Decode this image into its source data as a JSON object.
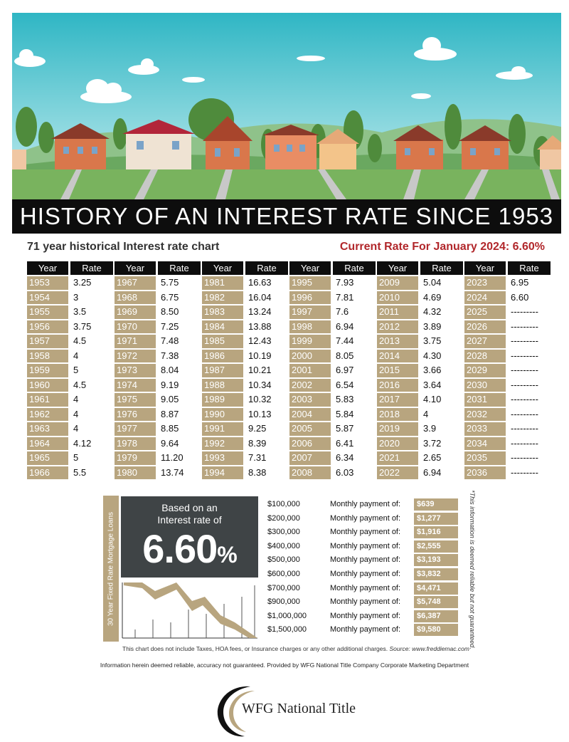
{
  "title": "HISTORY OF AN INTEREST RATE SINCE 1953",
  "subtitle_left": "71 year historical Interest rate chart",
  "subtitle_right": "Current Rate For January 2024: 6.60%",
  "headers": {
    "year": "Year",
    "rate": "Rate"
  },
  "tables": [
    {
      "rows": [
        {
          "year": "1953",
          "rate": "3.25"
        },
        {
          "year": "1954",
          "rate": "3"
        },
        {
          "year": "1955",
          "rate": "3.5"
        },
        {
          "year": "1956",
          "rate": "3.75"
        },
        {
          "year": "1957",
          "rate": "4.5"
        },
        {
          "year": "1958",
          "rate": "4"
        },
        {
          "year": "1959",
          "rate": "5"
        },
        {
          "year": "1960",
          "rate": "4.5"
        },
        {
          "year": "1961",
          "rate": "4"
        },
        {
          "year": "1962",
          "rate": "4"
        },
        {
          "year": "1963",
          "rate": "4"
        },
        {
          "year": "1964",
          "rate": "4.12"
        },
        {
          "year": "1965",
          "rate": "5"
        },
        {
          "year": "1966",
          "rate": "5.5"
        }
      ]
    },
    {
      "rows": [
        {
          "year": "1967",
          "rate": "5.75"
        },
        {
          "year": "1968",
          "rate": "6.75"
        },
        {
          "year": "1969",
          "rate": "8.50"
        },
        {
          "year": "1970",
          "rate": "7.25"
        },
        {
          "year": "1971",
          "rate": "7.48"
        },
        {
          "year": "1972",
          "rate": "7.38"
        },
        {
          "year": "1973",
          "rate": "8.04"
        },
        {
          "year": "1974",
          "rate": "9.19"
        },
        {
          "year": "1975",
          "rate": "9.05"
        },
        {
          "year": "1976",
          "rate": "8.87"
        },
        {
          "year": "1977",
          "rate": "8.85"
        },
        {
          "year": "1978",
          "rate": "9.64"
        },
        {
          "year": "1979",
          "rate": "11.20"
        },
        {
          "year": "1980",
          "rate": "13.74"
        }
      ]
    },
    {
      "rows": [
        {
          "year": "1981",
          "rate": "16.63"
        },
        {
          "year": "1982",
          "rate": "16.04"
        },
        {
          "year": "1983",
          "rate": "13.24"
        },
        {
          "year": "1984",
          "rate": "13.88"
        },
        {
          "year": "1985",
          "rate": "12.43"
        },
        {
          "year": "1986",
          "rate": "10.19"
        },
        {
          "year": "1987",
          "rate": "10.21"
        },
        {
          "year": "1988",
          "rate": "10.34"
        },
        {
          "year": "1989",
          "rate": "10.32"
        },
        {
          "year": "1990",
          "rate": "10.13"
        },
        {
          "year": "1991",
          "rate": "9.25"
        },
        {
          "year": "1992",
          "rate": "8.39"
        },
        {
          "year": "1993",
          "rate": "7.31"
        },
        {
          "year": "1994",
          "rate": "8.38"
        }
      ]
    },
    {
      "rows": [
        {
          "year": "1995",
          "rate": "7.93"
        },
        {
          "year": "1996",
          "rate": "7.81"
        },
        {
          "year": "1997",
          "rate": "7.6"
        },
        {
          "year": "1998",
          "rate": "6.94"
        },
        {
          "year": "1999",
          "rate": "7.44"
        },
        {
          "year": "2000",
          "rate": "8.05"
        },
        {
          "year": "2001",
          "rate": "6.97"
        },
        {
          "year": "2002",
          "rate": "6.54"
        },
        {
          "year": "2003",
          "rate": "5.83"
        },
        {
          "year": "2004",
          "rate": "5.84"
        },
        {
          "year": "2005",
          "rate": "5.87"
        },
        {
          "year": "2006",
          "rate": "6.41"
        },
        {
          "year": "2007",
          "rate": "6.34"
        },
        {
          "year": "2008",
          "rate": "6.03"
        }
      ]
    },
    {
      "rows": [
        {
          "year": "2009",
          "rate": "5.04"
        },
        {
          "year": "2010",
          "rate": "4.69"
        },
        {
          "year": "2011",
          "rate": "4.32"
        },
        {
          "year": "2012",
          "rate": "3.89"
        },
        {
          "year": "2013",
          "rate": "3.75"
        },
        {
          "year": "2014",
          "rate": "4.30"
        },
        {
          "year": "2015",
          "rate": "3.66"
        },
        {
          "year": "2016",
          "rate": "3.64"
        },
        {
          "year": "2017",
          "rate": "4.10"
        },
        {
          "year": "2018",
          "rate": "4"
        },
        {
          "year": "2019",
          "rate": "3.9"
        },
        {
          "year": "2020",
          "rate": "3.72"
        },
        {
          "year": "2021",
          "rate": "2.65"
        },
        {
          "year": "2022",
          "rate": "6.94"
        }
      ]
    },
    {
      "rows": [
        {
          "year": "2023",
          "rate": "6.95"
        },
        {
          "year": "2024",
          "rate": "6.60"
        },
        {
          "year": "2025",
          "rate": "---------"
        },
        {
          "year": "2026",
          "rate": "---------"
        },
        {
          "year": "2027",
          "rate": "---------"
        },
        {
          "year": "2028",
          "rate": "---------"
        },
        {
          "year": "2029",
          "rate": "---------"
        },
        {
          "year": "2030",
          "rate": "---------"
        },
        {
          "year": "2031",
          "rate": "---------"
        },
        {
          "year": "2032",
          "rate": "---------"
        },
        {
          "year": "2033",
          "rate": "---------"
        },
        {
          "year": "2034",
          "rate": "---------"
        },
        {
          "year": "2035",
          "rate": "---------"
        },
        {
          "year": "2036",
          "rate": "---------"
        }
      ]
    }
  ],
  "side_label": "30 Year Fixed Rate Mortgage Loans",
  "rate_box": {
    "caption_line1": "Based on an",
    "caption_line2": "Interest rate of",
    "value": "6.60",
    "percent": "%"
  },
  "payments": [
    {
      "amount": "$100,000",
      "label": "Monthly payment of:",
      "value": "$639"
    },
    {
      "amount": "$200,000",
      "label": "Monthly payment of:",
      "value": "$1,277"
    },
    {
      "amount": "$300,000",
      "label": "Monthly payment of:",
      "value": "$1,916"
    },
    {
      "amount": "$400,000",
      "label": "Monthly payment of:",
      "value": "$2,555"
    },
    {
      "amount": "$500,000",
      "label": "Monthly payment of:",
      "value": "$3,193"
    },
    {
      "amount": "$600,000",
      "label": "Monthly payment of:",
      "value": "$3,832"
    },
    {
      "amount": "$700,000",
      "label": "Monthly payment of:",
      "value": "$4,471"
    },
    {
      "amount": "$900,000",
      "label": "Monthly payment of:",
      "value": "$5,748"
    },
    {
      "amount": "$1,000,000",
      "label": "Monthly payment of:",
      "value": "$6,387"
    },
    {
      "amount": "$1,500,000",
      "label": "Monthly payment of:",
      "value": "$9,580"
    }
  ],
  "side_disclaimer": "*This information is deemed reliable but not guaranteed.",
  "footnote": "This chart does not include Taxes, HOA fees, or Insurance charges or any other additional charges.",
  "source": "Source: www.freddiemac.com",
  "footer": "Information herein deemed reliable, accuracy not guaranteed. Provided by WFG National Title Company Corporate Marketing Department",
  "logo": {
    "brand": "WFG National Title"
  },
  "colors": {
    "gold": "#b8a57f",
    "black": "#0d0d0d",
    "red": "#b1272b",
    "dark_gray": "#3f4446"
  }
}
